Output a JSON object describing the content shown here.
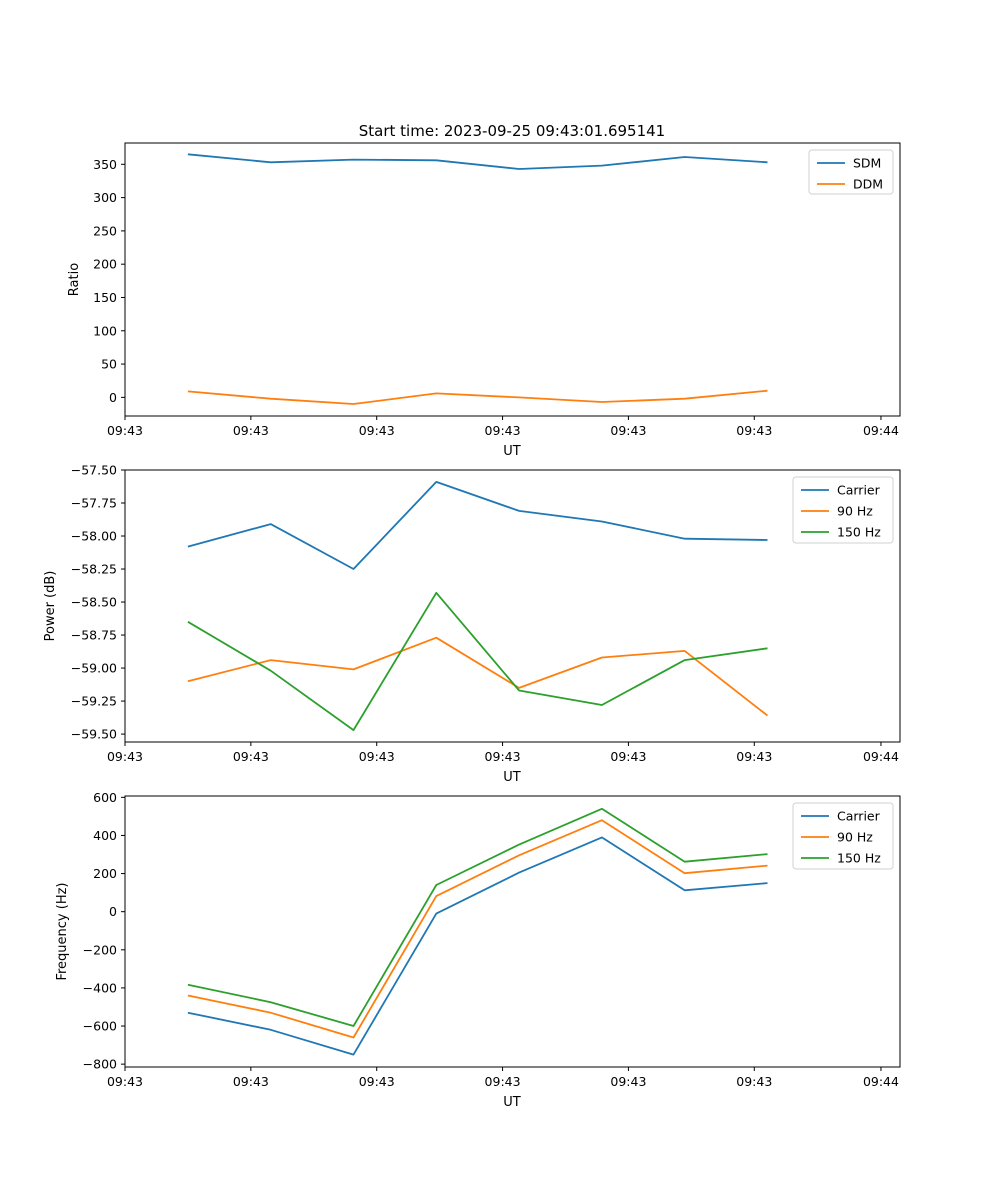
{
  "figure": {
    "title": "Start time: 2023-09-25 09:43:01.695141"
  },
  "colors": {
    "blue": "#1f77b4",
    "orange": "#ff7f0e",
    "green": "#2ca02c"
  },
  "chart_data": [
    {
      "type": "line",
      "title": "Start time: 2023-09-25 09:43:01.695141",
      "xlabel": "UT",
      "ylabel": "Ratio",
      "x_index": [
        0,
        1,
        2,
        3,
        4,
        5,
        6,
        7
      ],
      "xlim": [
        -0.76,
        8.6
      ],
      "x_ticks": [
        -0.76,
        0.76,
        2.28,
        3.8,
        5.32,
        6.84,
        8.37
      ],
      "x_tick_labels": [
        "09:43",
        "09:43",
        "09:43",
        "09:43",
        "09:43",
        "09:43",
        "09:44"
      ],
      "ylim": [
        -28,
        382
      ],
      "y_ticks": [
        0,
        50,
        100,
        150,
        200,
        250,
        300,
        350
      ],
      "y_tick_labels": [
        "0",
        "50",
        "100",
        "150",
        "200",
        "250",
        "300",
        "350"
      ],
      "legend_position": "top-right",
      "grid": false,
      "series": [
        {
          "name": "SDM",
          "color": "#1f77b4",
          "values": [
            365,
            353,
            357,
            356,
            343,
            348,
            361,
            353
          ]
        },
        {
          "name": "DDM",
          "color": "#ff7f0e",
          "values": [
            9,
            -2,
            -10,
            6,
            0,
            -7,
            -2,
            10
          ]
        }
      ]
    },
    {
      "type": "line",
      "title": "",
      "xlabel": "UT",
      "ylabel": "Power (dB)",
      "x_index": [
        0,
        1,
        2,
        3,
        4,
        5,
        6,
        7
      ],
      "xlim": [
        -0.76,
        8.6
      ],
      "x_ticks": [
        -0.76,
        0.76,
        2.28,
        3.8,
        5.32,
        6.84,
        8.37
      ],
      "x_tick_labels": [
        "09:43",
        "09:43",
        "09:43",
        "09:43",
        "09:43",
        "09:43",
        "09:44"
      ],
      "ylim": [
        -59.56,
        -57.5
      ],
      "y_ticks": [
        -57.5,
        -57.75,
        -58.0,
        -58.25,
        -58.5,
        -58.75,
        -59.0,
        -59.25,
        -59.5
      ],
      "y_tick_labels": [
        "−57.50",
        "−57.75",
        "−58.00",
        "−58.25",
        "−58.50",
        "−58.75",
        "−59.00",
        "−59.25",
        "−59.50"
      ],
      "legend_position": "top-right",
      "grid": false,
      "series": [
        {
          "name": "Carrier",
          "color": "#1f77b4",
          "values": [
            -58.08,
            -57.91,
            -58.25,
            -57.59,
            -57.81,
            -57.89,
            -58.02,
            -58.03
          ]
        },
        {
          "name": "90 Hz",
          "color": "#ff7f0e",
          "values": [
            -59.1,
            -58.94,
            -59.01,
            -58.77,
            -59.15,
            -58.92,
            -58.87,
            -59.36
          ]
        },
        {
          "name": "150 Hz",
          "color": "#2ca02c",
          "values": [
            -58.65,
            -59.02,
            -59.47,
            -58.43,
            -59.17,
            -59.28,
            -58.94,
            -58.85
          ]
        }
      ]
    },
    {
      "type": "line",
      "title": "",
      "xlabel": "UT",
      "ylabel": "Frequency (Hz)",
      "x_index": [
        0,
        1,
        2,
        3,
        4,
        5,
        6,
        7
      ],
      "xlim": [
        -0.76,
        8.6
      ],
      "x_ticks": [
        -0.76,
        0.76,
        2.28,
        3.8,
        5.32,
        6.84,
        8.37
      ],
      "x_tick_labels": [
        "09:43",
        "09:43",
        "09:43",
        "09:43",
        "09:43",
        "09:43",
        "09:44"
      ],
      "ylim": [
        -815,
        607
      ],
      "y_ticks": [
        -800,
        -600,
        -400,
        -200,
        0,
        200,
        400,
        600
      ],
      "y_tick_labels": [
        "−800",
        "−600",
        "−400",
        "−200",
        "0",
        "200",
        "400",
        "600"
      ],
      "legend_position": "top-right",
      "grid": false,
      "series": [
        {
          "name": "Carrier",
          "color": "#1f77b4",
          "values": [
            -530,
            -620,
            -750,
            -10,
            205,
            390,
            112,
            150
          ]
        },
        {
          "name": "90 Hz",
          "color": "#ff7f0e",
          "values": [
            -440,
            -530,
            -660,
            82,
            296,
            480,
            202,
            242
          ]
        },
        {
          "name": "150 Hz",
          "color": "#2ca02c",
          "values": [
            -383,
            -475,
            -600,
            140,
            352,
            540,
            262,
            302
          ]
        }
      ]
    }
  ]
}
